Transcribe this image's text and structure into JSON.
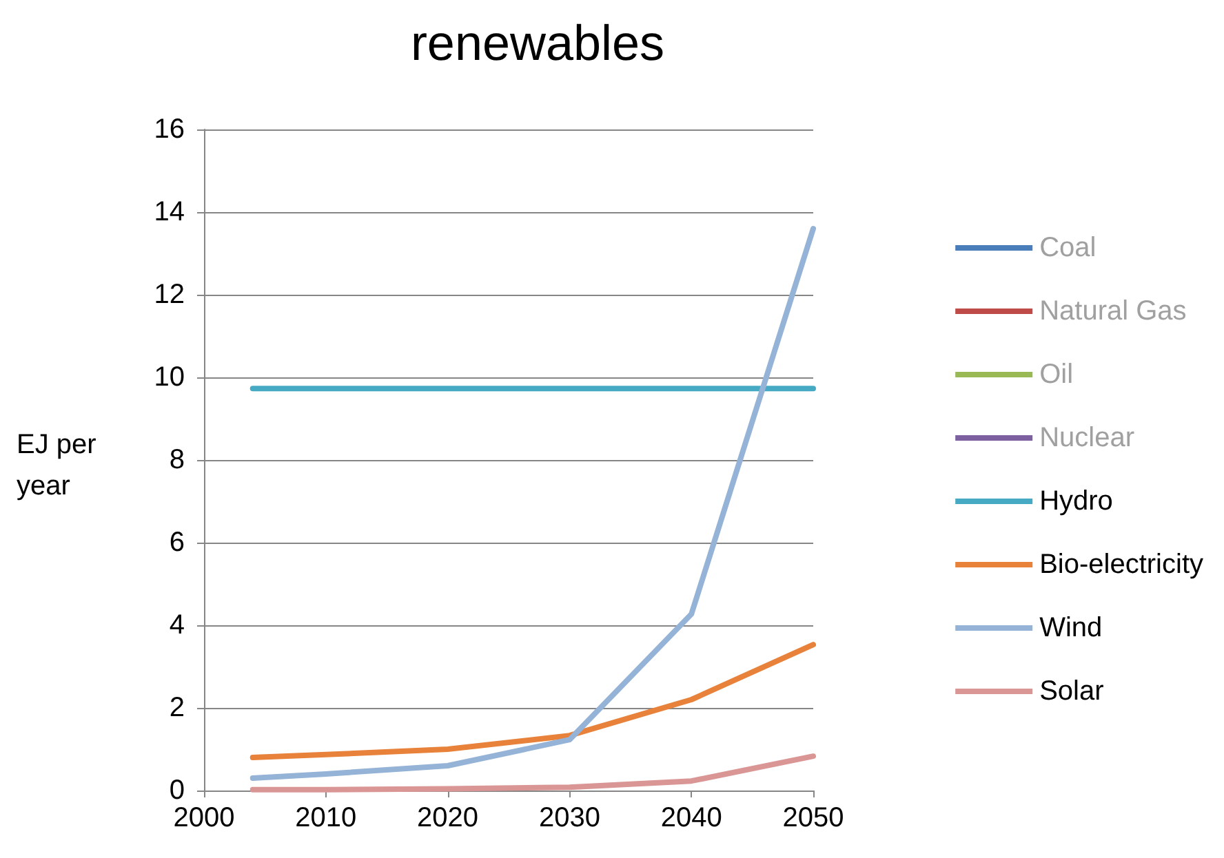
{
  "chart_data": {
    "type": "line",
    "title": "renewables",
    "ylabel": "EJ per year",
    "x": [
      2004,
      2010,
      2020,
      2030,
      2040,
      2050
    ],
    "series": [
      {
        "name": "Coal",
        "color": "#4a7ebb",
        "values": [
          null,
          null,
          null,
          null,
          null,
          null
        ]
      },
      {
        "name": "Natural Gas",
        "color": "#be4b48",
        "values": [
          null,
          null,
          null,
          null,
          null,
          null
        ]
      },
      {
        "name": "Oil",
        "color": "#98b954",
        "values": [
          null,
          null,
          null,
          null,
          null,
          null
        ]
      },
      {
        "name": "Nuclear",
        "color": "#7d60a0",
        "values": [
          null,
          null,
          null,
          null,
          null,
          null
        ]
      },
      {
        "name": "Hydro",
        "color": "#46aac5",
        "values": [
          9.73,
          9.73,
          9.73,
          9.73,
          9.73,
          9.73
        ]
      },
      {
        "name": "Bio-electricity",
        "color": "#e8823a",
        "values": [
          0.8,
          0.87,
          1.0,
          1.33,
          2.2,
          3.53
        ]
      },
      {
        "name": "Wind",
        "color": "#95b3d7",
        "values": [
          0.3,
          0.4,
          0.6,
          1.23,
          4.27,
          13.6
        ]
      },
      {
        "name": "Solar",
        "color": "#d99694",
        "values": [
          0.02,
          0.02,
          0.04,
          0.08,
          0.23,
          0.83
        ]
      }
    ],
    "xlim": [
      2000,
      2050
    ],
    "xticks": [
      2000,
      2010,
      2020,
      2030,
      2040,
      2050
    ],
    "ylim": [
      0,
      16
    ],
    "yticks": [
      0,
      2,
      4,
      6,
      8,
      10,
      12,
      14,
      16
    ],
    "grid": "y",
    "legend": "right",
    "marker": "none",
    "line_style": "solid"
  }
}
